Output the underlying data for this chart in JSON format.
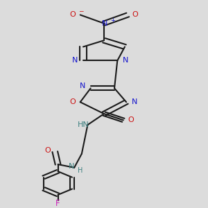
{
  "bg_color": "#dcdcdc",
  "bond_color": "#1a1a1a",
  "N_color": "#1414cc",
  "O_color": "#cc1010",
  "F_color": "#cc22bb",
  "NH_color": "#3d8080",
  "bond_lw": 1.5,
  "figsize": [
    3.0,
    3.0
  ],
  "dpi": 100,
  "xlim": [
    0.15,
    0.85
  ],
  "ylim": [
    0.02,
    0.98
  ]
}
